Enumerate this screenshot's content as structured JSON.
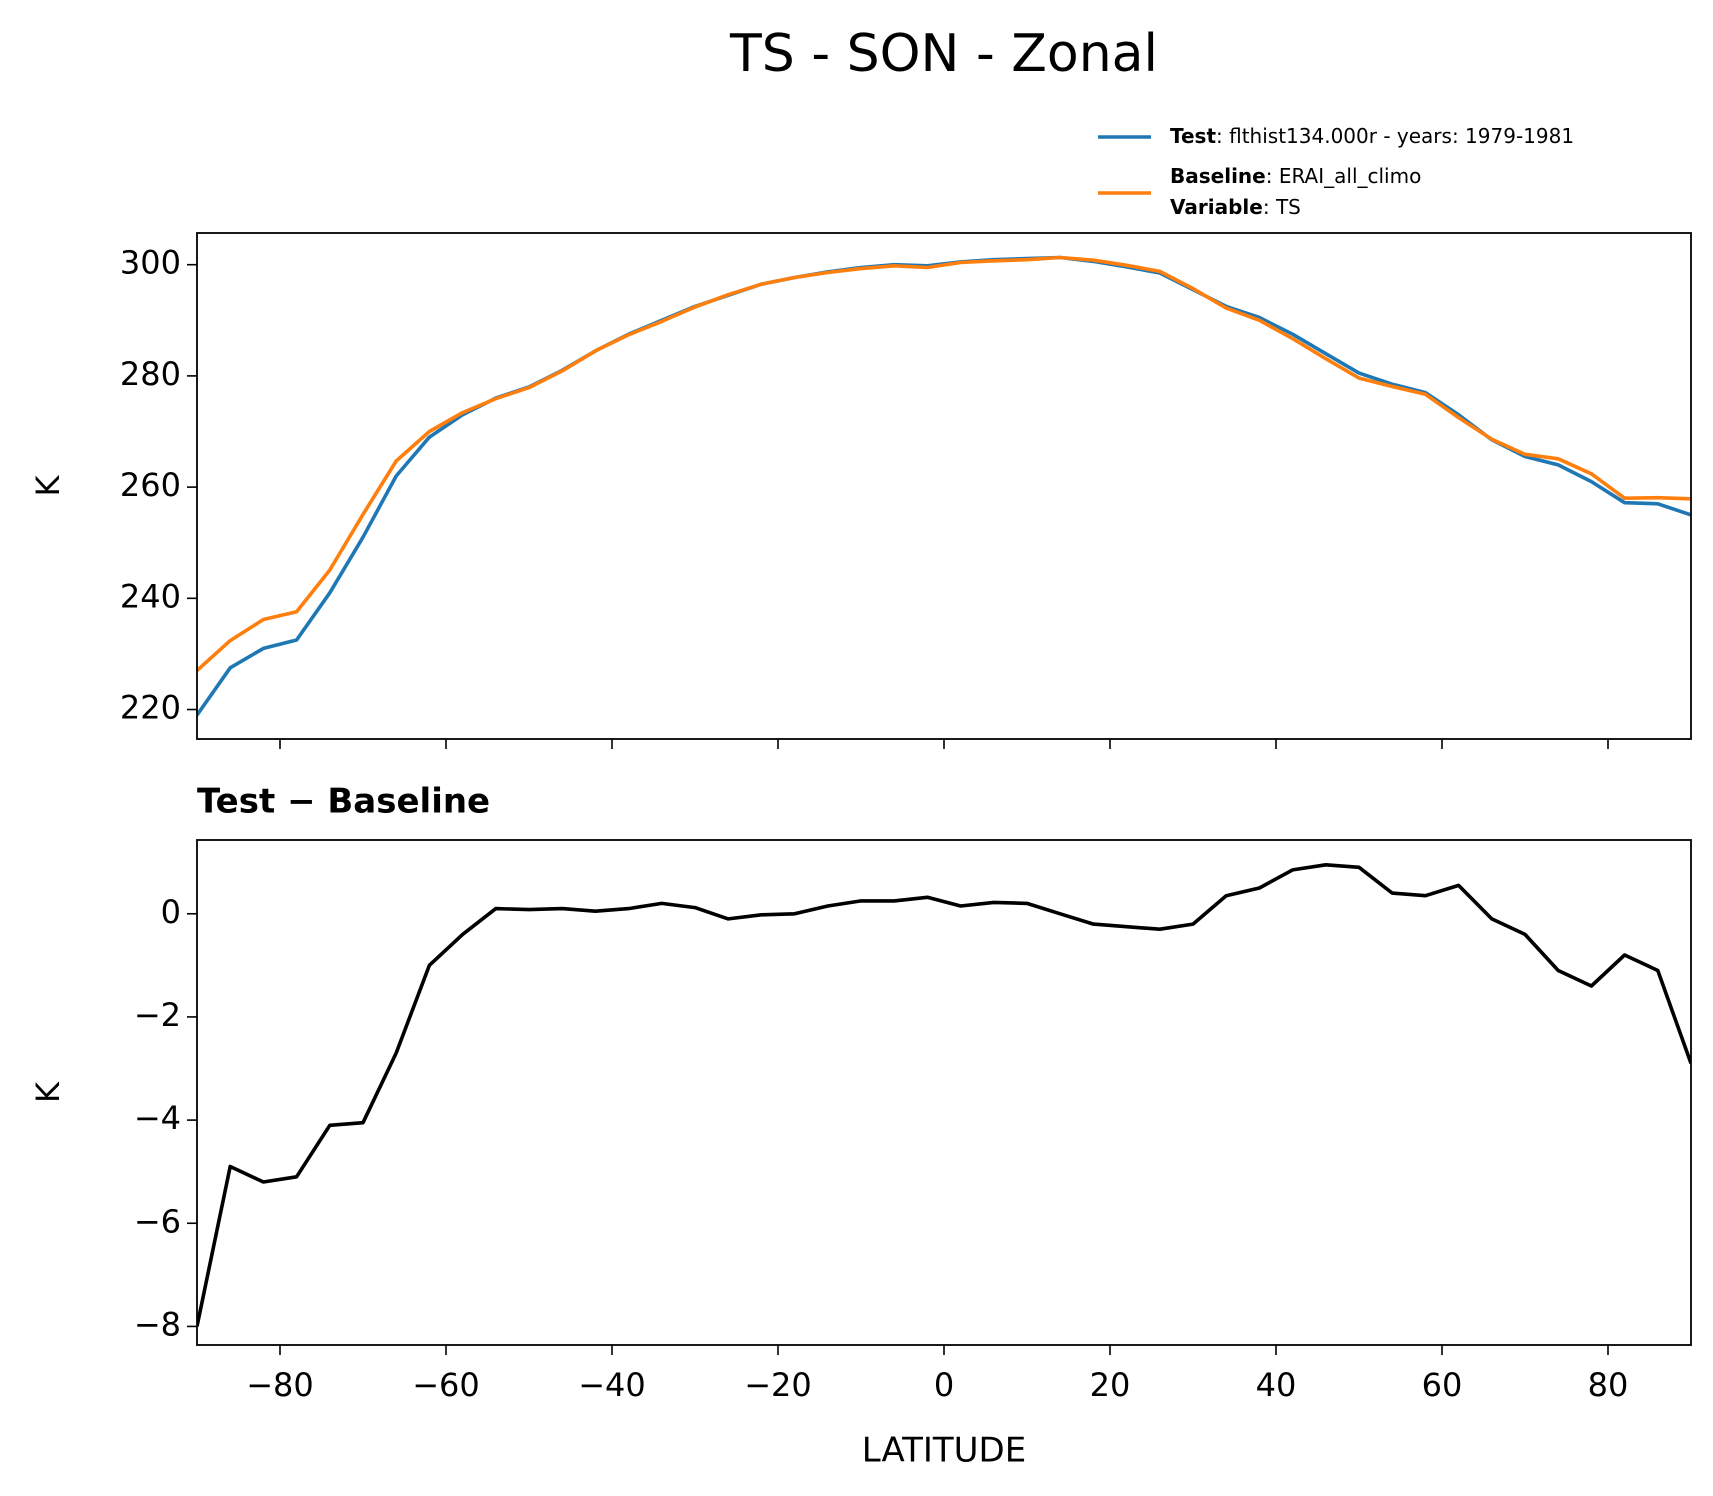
{
  "title": "TS - SON - Zonal",
  "chart_data": [
    {
      "type": "line",
      "ylabel": "K",
      "x": [
        -90,
        -86,
        -82,
        -78,
        -74,
        -70,
        -66,
        -62,
        -58,
        -54,
        -50,
        -46,
        -42,
        -38,
        -34,
        -30,
        -26,
        -22,
        -18,
        -14,
        -10,
        -6,
        -2,
        2,
        6,
        10,
        14,
        18,
        22,
        26,
        30,
        34,
        38,
        42,
        46,
        50,
        54,
        58,
        62,
        66,
        70,
        74,
        78,
        82,
        86,
        90
      ],
      "series": [
        {
          "name": "Test",
          "description": ": flthist134.000r - years: 1979-1981",
          "color": "#1f77b4",
          "values": [
            219,
            227.5,
            231,
            232.5,
            241,
            251,
            262,
            269,
            273,
            276,
            278,
            281,
            284.5,
            287.5,
            290,
            292.5,
            294.5,
            296.5,
            297.7,
            298.7,
            299.5,
            300,
            299.8,
            300.5,
            300.9,
            301.1,
            301.3,
            300.6,
            299.6,
            298.5,
            295.5,
            292.5,
            290.5,
            287.5,
            284,
            280.5,
            278.5,
            277,
            273,
            268.5,
            265.5,
            264,
            261,
            257.2,
            257,
            255
          ]
        },
        {
          "name": "Baseline",
          "description": ": ERAI_all_climo",
          "color": "#ff7f0e",
          "values": [
            227,
            232.4,
            236.2,
            237.6,
            245.1,
            255.1,
            264.7,
            270,
            273.4,
            275.9,
            277.9,
            280.9,
            284.5,
            287.4,
            289.8,
            292.4,
            294.6,
            296.5,
            297.7,
            298.6,
            299.3,
            299.8,
            299.5,
            300.4,
            300.7,
            300.9,
            301.3,
            300.8,
            299.9,
            298.8,
            295.7,
            292.2,
            290,
            286.7,
            283.1,
            279.6,
            278.1,
            276.7,
            272.5,
            268.6,
            265.9,
            265.1,
            262.4,
            258,
            258.1,
            257.9
          ]
        }
      ],
      "legend_extra": {
        "name": "Variable",
        "description": ": TS"
      },
      "xlim": [
        -90,
        90
      ],
      "xticks": [
        -80,
        -60,
        -40,
        -20,
        0,
        20,
        40,
        60,
        80
      ],
      "ylim": [
        214.7,
        305.7
      ],
      "yticks": [
        220,
        240,
        260,
        280,
        300
      ]
    },
    {
      "type": "line",
      "title": "Test − Baseline",
      "ylabel": "K",
      "xlabel": "LATITUDE",
      "x": [
        -90,
        -86,
        -82,
        -78,
        -74,
        -70,
        -66,
        -62,
        -58,
        -54,
        -50,
        -46,
        -42,
        -38,
        -34,
        -30,
        -26,
        -22,
        -18,
        -14,
        -10,
        -6,
        -2,
        2,
        6,
        10,
        14,
        18,
        22,
        26,
        30,
        34,
        38,
        42,
        46,
        50,
        54,
        58,
        62,
        66,
        70,
        74,
        78,
        82,
        86,
        90
      ],
      "series": [
        {
          "color": "#000000",
          "values": [
            -8,
            -4.9,
            -5.2,
            -5.1,
            -4.1,
            -4.05,
            -2.7,
            -1.0,
            -0.4,
            0.1,
            0.08,
            0.1,
            0.05,
            0.1,
            0.2,
            0.12,
            -0.1,
            -0.02,
            0.0,
            0.15,
            0.25,
            0.25,
            0.32,
            0.15,
            0.22,
            0.2,
            0.0,
            -0.2,
            -0.25,
            -0.3,
            -0.2,
            0.35,
            0.5,
            0.85,
            0.95,
            0.9,
            0.4,
            0.35,
            0.55,
            -0.1,
            -0.4,
            -1.1,
            -1.4,
            -0.8,
            -1.1,
            -2.9
          ]
        }
      ],
      "xlim": [
        -90,
        90
      ],
      "xticks": [
        {
          "value": -80,
          "label": "−80"
        },
        {
          "value": -60,
          "label": "−60"
        },
        {
          "value": -40,
          "label": "−40"
        },
        {
          "value": -20,
          "label": "−20"
        },
        0,
        20,
        40,
        60,
        80
      ],
      "ylim": [
        -8.36,
        1.43
      ],
      "yticks": [
        {
          "value": -8,
          "label": "−8"
        },
        {
          "value": -6,
          "label": "−6"
        },
        {
          "value": -4,
          "label": "−4"
        },
        {
          "value": -2,
          "label": "−2"
        },
        0
      ]
    }
  ]
}
